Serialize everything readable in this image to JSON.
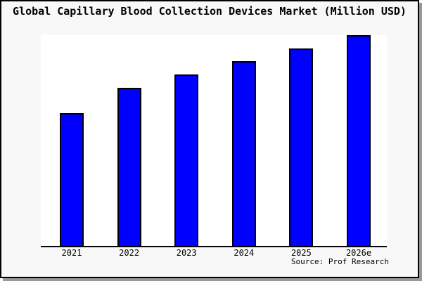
{
  "title": "Global Capillary Blood Collection Devices Market (Million USD)",
  "source_note": "Source: Prof Research",
  "chart_data": {
    "type": "bar",
    "title": "Global Capillary Blood Collection Devices Market (Million USD)",
    "categories": [
      "2021",
      "2022",
      "2023",
      "2024",
      "2025",
      "2026e"
    ],
    "values_pct_of_max": [
      63,
      75,
      81.3,
      87.7,
      93.7,
      100
    ],
    "value_labels_shown": false,
    "y_axis_shown": false,
    "grid": false,
    "legend": false,
    "xlabel": "",
    "ylabel": "",
    "bar_color": "#0000ff",
    "bar_border_color": "#000000",
    "plot_bg": "#ffffff",
    "canvas_bg": "#f8f8f8",
    "source": "Source: Prof Research"
  }
}
